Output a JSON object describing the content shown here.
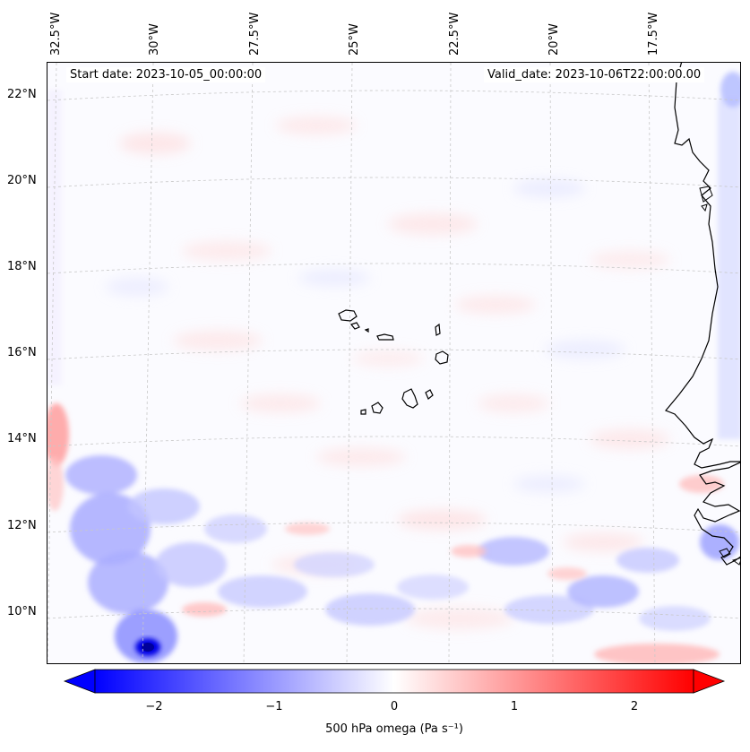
{
  "header": {
    "start_date": "Start date: 2023-10-05_00:00:00",
    "valid_date": "Valid_date: 2023-10-06T22:00:00.00"
  },
  "axes": {
    "lon_labels": [
      "32.5°W",
      "30°W",
      "27.5°W",
      "25°W",
      "22.5°W",
      "20°W",
      "17.5°W"
    ],
    "lat_labels": [
      "22°N",
      "20°N",
      "18°N",
      "16°N",
      "14°N",
      "12°N",
      "10°N"
    ],
    "gridlines": "dashed light gray"
  },
  "colorbar": {
    "label": "500 hPa omega (Pa s⁻¹)",
    "ticks": [
      "−2",
      "−1",
      "0",
      "1",
      "2"
    ],
    "range": [
      -2.5,
      2.5
    ],
    "extend": "both",
    "colormap": "bwr",
    "low_color": "#0000ff",
    "mid_color": "#ffffff",
    "high_color": "#ff0000"
  },
  "field": {
    "description_colors": {
      "ascent": "#5555ff",
      "descent": "#ff7777"
    }
  }
}
